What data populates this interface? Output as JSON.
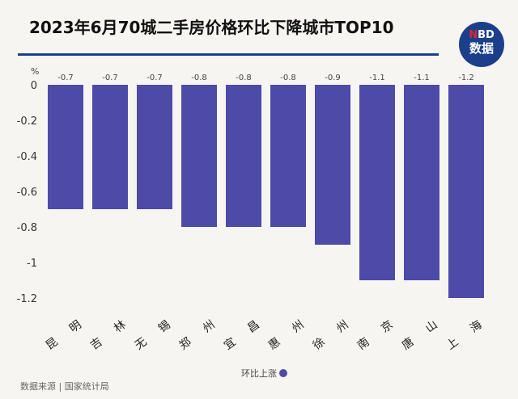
{
  "title": "2023年6月70城二手房价格环比下降城市TOP10",
  "logo": {
    "top": "NBD",
    "bottom": "数据"
  },
  "source": "数据来源 | 国家统计局",
  "colors": {
    "bar": "#4e4aa8",
    "rule": "#1d3f8a",
    "logo": "#1c3f8c",
    "background": "#f7f5f1"
  },
  "chart_data": {
    "type": "bar",
    "title": "2023年6月70城二手房价格环比下降城市TOP10",
    "unit_label": "%",
    "categories": [
      "昆明",
      "吉林",
      "无锡",
      "郑州",
      "宜昌",
      "惠州",
      "徐州",
      "南京",
      "唐山",
      "上海"
    ],
    "series": [
      {
        "name": "环比上涨",
        "values": [
          -0.7,
          -0.7,
          -0.7,
          -0.8,
          -0.8,
          -0.8,
          -0.9,
          -1.1,
          -1.1,
          -1.2
        ]
      }
    ],
    "data_labels": [
      "-0.7",
      "-0.7",
      "-0.7",
      "-0.8",
      "-0.8",
      "-0.8",
      "-0.9",
      "-1.1",
      "-1.1",
      "-1.2"
    ],
    "yticks": [
      "0",
      "-0.2",
      "-0.4",
      "-0.6",
      "-0.8",
      "-1",
      "-1.2"
    ],
    "ylim": [
      -1.2,
      0
    ],
    "legend": "bottom",
    "grid": false
  }
}
